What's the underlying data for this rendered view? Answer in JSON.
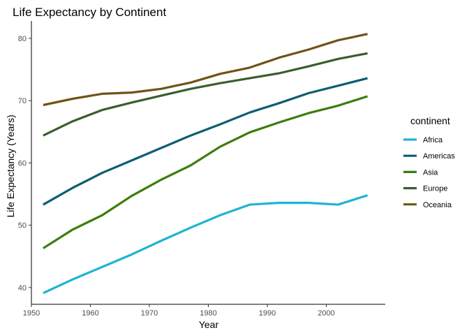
{
  "chart_data": {
    "type": "line",
    "title": "Life Expectancy by Continent",
    "xlabel": "Year",
    "ylabel": "Life Expectancy (Years)",
    "xlim": [
      1950,
      2010
    ],
    "ylim": [
      37.3,
      82.8
    ],
    "x_ticks": [
      1950,
      1960,
      1970,
      1980,
      1990,
      2000
    ],
    "y_ticks": [
      40,
      50,
      60,
      70,
      80
    ],
    "grid": false,
    "legend_title": "continent",
    "legend_position": "right",
    "x": [
      1952,
      1957,
      1962,
      1967,
      1972,
      1977,
      1982,
      1987,
      1992,
      1997,
      2002,
      2007
    ],
    "series": [
      {
        "name": "Africa",
        "color": "#1eb4d2",
        "values": [
          39.1,
          41.3,
          43.3,
          45.3,
          47.5,
          49.6,
          51.6,
          53.3,
          53.6,
          53.6,
          53.3,
          54.8
        ]
      },
      {
        "name": "Americas",
        "color": "#0d5d73",
        "values": [
          53.3,
          56.0,
          58.4,
          60.4,
          62.4,
          64.4,
          66.2,
          68.1,
          69.6,
          71.2,
          72.4,
          73.6
        ]
      },
      {
        "name": "Asia",
        "color": "#3b7d0c",
        "values": [
          46.3,
          49.3,
          51.6,
          54.7,
          57.3,
          59.6,
          62.6,
          64.9,
          66.5,
          68.0,
          69.2,
          70.7
        ]
      },
      {
        "name": "Europe",
        "color": "#3a5e2e",
        "values": [
          64.4,
          66.7,
          68.5,
          69.7,
          70.8,
          71.9,
          72.8,
          73.6,
          74.4,
          75.5,
          76.7,
          77.6
        ]
      },
      {
        "name": "Oceania",
        "color": "#6e5416",
        "values": [
          69.3,
          70.3,
          71.1,
          71.3,
          71.9,
          72.9,
          74.3,
          75.3,
          76.9,
          78.2,
          79.7,
          80.7
        ]
      }
    ]
  }
}
